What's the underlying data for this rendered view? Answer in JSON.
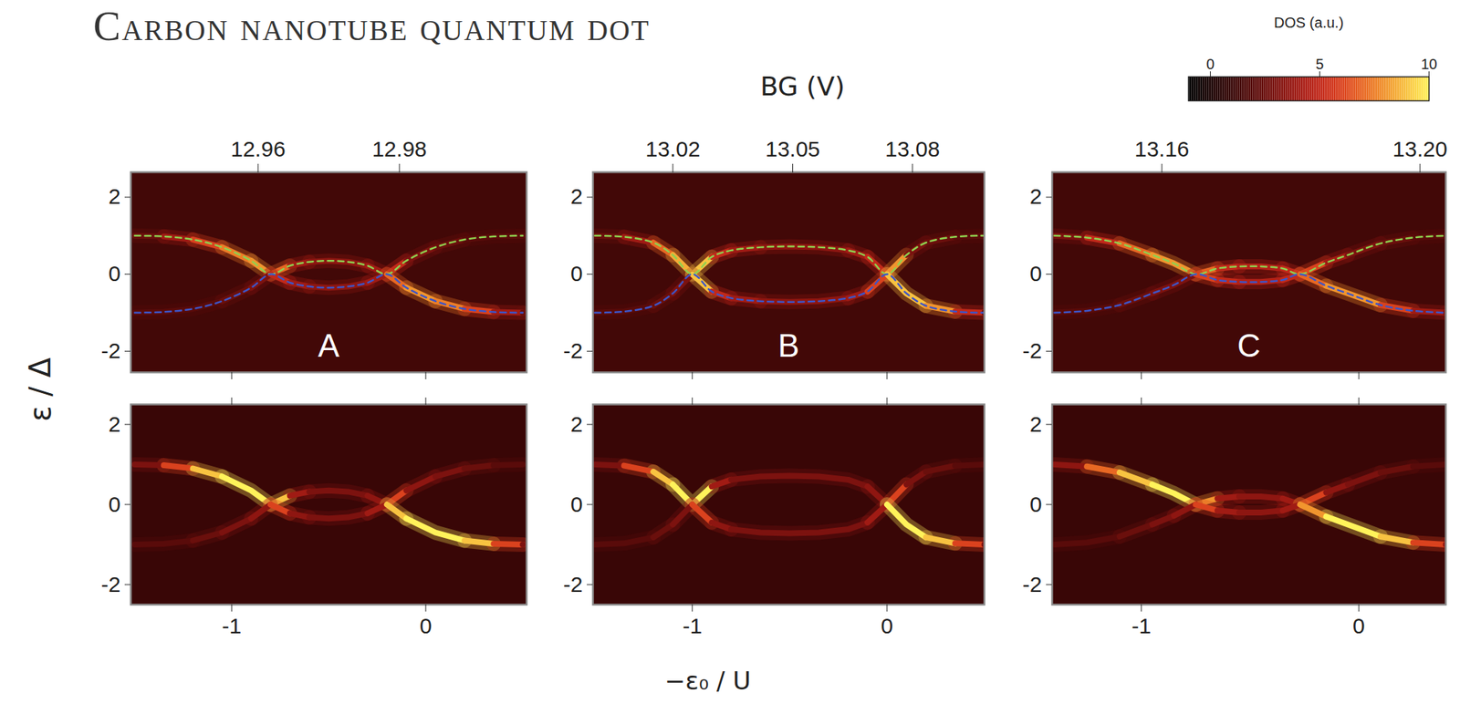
{
  "figure": {
    "title": "Carbon nanotube quantum dot",
    "x2_label": "BG (V)",
    "x_label": "−ε₀ / U",
    "y_label": "ε / Δ",
    "colorbar": {
      "label": "DOS (a.u.)",
      "range": [
        -1,
        10
      ],
      "ticks": [
        0,
        5,
        10
      ]
    }
  },
  "chart_data": [
    {
      "type": "line",
      "label": "A",
      "tick_labels": "y",
      "background_dos": 1.3,
      "xlim": [
        -1.52,
        0.52
      ],
      "xticks": [
        -1,
        0
      ],
      "ylim": [
        -2.55,
        2.65
      ],
      "yticks": [
        -2,
        0,
        2
      ],
      "x2lim": [
        12.942,
        12.998
      ],
      "x2ticks": [
        12.96,
        12.98
      ],
      "x": [
        -1.5,
        -1.35,
        -1.2,
        -1.05,
        -0.9,
        -0.8,
        -0.7,
        -0.6,
        -0.5,
        -0.4,
        -0.3,
        -0.2,
        -0.1,
        0.05,
        0.2,
        0.35,
        0.5
      ],
      "series": [
        {
          "values": [
            1.0,
            0.98,
            0.9,
            0.7,
            0.35,
            0,
            0.22,
            0.32,
            0.35,
            0.32,
            0.22,
            0,
            0.35,
            0.7,
            0.9,
            0.98,
            1.0
          ],
          "dos": [
            2.5,
            4,
            6,
            7.5,
            8,
            7,
            4,
            3.5,
            3.5,
            3.5,
            4,
            5,
            3,
            2.5,
            2,
            2,
            2
          ]
        },
        {
          "values": [
            -1.0,
            -0.98,
            -0.9,
            -0.7,
            -0.35,
            0,
            -0.22,
            -0.32,
            -0.35,
            -0.32,
            -0.22,
            0,
            -0.35,
            -0.7,
            -0.9,
            -0.98,
            -1.0
          ],
          "dos": [
            2,
            2,
            2,
            2.5,
            3,
            5,
            4,
            3.5,
            3.5,
            3.5,
            4,
            7,
            8,
            7.5,
            6,
            4,
            2.5
          ]
        },
        {
          "values": [
            1.0,
            0.98,
            0.9,
            0.7,
            0.35,
            0,
            0.22,
            0.32,
            0.35,
            0.32,
            0.22,
            0,
            0.35,
            0.7,
            0.9,
            0.98,
            1.0
          ],
          "color": "#8fd14f",
          "line_style": "dashed"
        },
        {
          "values": [
            -1.0,
            -0.98,
            -0.9,
            -0.7,
            -0.35,
            0,
            -0.22,
            -0.32,
            -0.35,
            -0.32,
            -0.22,
            0,
            -0.35,
            -0.7,
            -0.9,
            -0.98,
            -1.0
          ],
          "color": "#3d55c8",
          "line_style": "dashed"
        }
      ]
    },
    {
      "type": "line",
      "label": "B",
      "tick_labels": "y",
      "background_dos": 1.3,
      "xlim": [
        -1.51,
        0.5
      ],
      "xticks": [
        -1,
        0
      ],
      "ylim": [
        -2.55,
        2.65
      ],
      "yticks": [
        -2,
        0,
        2
      ],
      "x2lim": [
        13.0,
        13.098
      ],
      "x2ticks": [
        13.02,
        13.05,
        13.08
      ],
      "x": [
        -1.5,
        -1.35,
        -1.2,
        -1.1,
        -1.0,
        -0.9,
        -0.8,
        -0.65,
        -0.5,
        -0.35,
        -0.2,
        -0.1,
        0.0,
        0.1,
        0.2,
        0.35,
        0.5
      ],
      "series": [
        {
          "values": [
            1.0,
            0.97,
            0.82,
            0.5,
            0,
            0.45,
            0.62,
            0.7,
            0.72,
            0.7,
            0.62,
            0.45,
            0,
            0.5,
            0.82,
            0.97,
            1.0
          ],
          "dos": [
            2.5,
            4,
            7,
            8.5,
            9,
            5,
            4,
            3.5,
            3.5,
            3.5,
            4,
            5,
            8,
            3,
            2.5,
            2,
            2
          ]
        },
        {
          "values": [
            -1.0,
            -0.97,
            -0.82,
            -0.5,
            0,
            -0.45,
            -0.62,
            -0.7,
            -0.72,
            -0.7,
            -0.62,
            -0.45,
            0,
            -0.5,
            -0.82,
            -0.97,
            -1.0
          ],
          "dos": [
            2,
            2,
            2.5,
            3,
            9,
            5,
            4,
            3.5,
            3.5,
            3.5,
            4,
            6,
            9,
            9,
            8,
            5,
            2.5
          ]
        },
        {
          "values": [
            1.0,
            0.97,
            0.82,
            0.5,
            0,
            0.45,
            0.62,
            0.7,
            0.72,
            0.7,
            0.62,
            0.45,
            0,
            0.5,
            0.82,
            0.97,
            1.0
          ],
          "color": "#8fd14f",
          "line_style": "dashed"
        },
        {
          "values": [
            -1.0,
            -0.97,
            -0.82,
            -0.5,
            0,
            -0.45,
            -0.62,
            -0.7,
            -0.72,
            -0.7,
            -0.62,
            -0.45,
            0,
            -0.5,
            -0.82,
            -0.97,
            -1.0
          ],
          "color": "#3d55c8",
          "line_style": "dashed"
        }
      ]
    },
    {
      "type": "line",
      "label": "C",
      "tick_labels": "y",
      "background_dos": 1.3,
      "xlim": [
        -1.41,
        0.4
      ],
      "xticks": [
        -1,
        0
      ],
      "ylim": [
        -2.55,
        2.65
      ],
      "yticks": [
        -2,
        0,
        2
      ],
      "x2lim": [
        13.143,
        13.204
      ],
      "x2ticks": [
        13.16,
        {
          "value": 13.2,
          "label": "13.20"
        }
      ],
      "x": [
        -1.4,
        -1.25,
        -1.1,
        -0.95,
        -0.85,
        -0.75,
        -0.65,
        -0.55,
        -0.45,
        -0.35,
        -0.27,
        -0.15,
        -0.05,
        0.1,
        0.25,
        0.4
      ],
      "series": [
        {
          "values": [
            1.0,
            0.95,
            0.8,
            0.5,
            0.28,
            0,
            0.15,
            0.2,
            0.2,
            0.15,
            0,
            0.3,
            0.5,
            0.8,
            0.95,
            1.0
          ],
          "dos": [
            3,
            5,
            7,
            8,
            8,
            7,
            5,
            4.5,
            4.5,
            5,
            6,
            4,
            3,
            2.5,
            2,
            2
          ]
        },
        {
          "values": [
            -1.0,
            -0.95,
            -0.8,
            -0.5,
            -0.28,
            0,
            -0.15,
            -0.2,
            -0.2,
            -0.15,
            0,
            -0.3,
            -0.5,
            -0.8,
            -0.95,
            -1.0
          ],
          "dos": [
            2,
            2,
            2.5,
            3,
            3,
            6,
            5,
            4.5,
            4.5,
            5,
            7,
            8,
            8,
            6,
            4,
            3
          ]
        },
        {
          "values": [
            1.0,
            0.95,
            0.8,
            0.5,
            0.28,
            0,
            0.15,
            0.2,
            0.2,
            0.15,
            0,
            0.3,
            0.5,
            0.8,
            0.95,
            1.0
          ],
          "color": "#8fd14f",
          "line_style": "dashed"
        },
        {
          "values": [
            -1.0,
            -0.95,
            -0.8,
            -0.5,
            -0.28,
            0,
            -0.15,
            -0.2,
            -0.2,
            -0.15,
            0,
            -0.3,
            -0.5,
            -0.8,
            -0.95,
            -1.0
          ],
          "color": "#3d55c8",
          "line_style": "dashed"
        }
      ]
    },
    {
      "type": "line",
      "tick_labels": true,
      "background_dos": 1.0,
      "xlim": [
        -1.52,
        0.52
      ],
      "xticks": [
        -1,
        0
      ],
      "ylim": [
        -2.5,
        2.5
      ],
      "yticks": [
        -2,
        0,
        2
      ],
      "x": [
        -1.5,
        -1.35,
        -1.2,
        -1.05,
        -0.9,
        -0.8,
        -0.7,
        -0.6,
        -0.5,
        -0.4,
        -0.3,
        -0.2,
        -0.1,
        0.05,
        0.2,
        0.35,
        0.5
      ],
      "series": [
        {
          "values": [
            1.0,
            0.98,
            0.9,
            0.7,
            0.35,
            0,
            0.22,
            0.32,
            0.35,
            0.32,
            0.22,
            0,
            0.35,
            0.7,
            0.9,
            0.98,
            1.0
          ],
          "dos": [
            3,
            6,
            9,
            10,
            10,
            9,
            4,
            3,
            3,
            3,
            3.5,
            6,
            3.5,
            3,
            2.5,
            2,
            2
          ]
        },
        {
          "values": [
            -1.0,
            -0.98,
            -0.9,
            -0.7,
            -0.35,
            0,
            -0.22,
            -0.32,
            -0.35,
            -0.32,
            -0.22,
            0,
            -0.35,
            -0.7,
            -0.9,
            -0.98,
            -1.0
          ],
          "dos": [
            2,
            2,
            2.5,
            3,
            3.5,
            6,
            3.5,
            3,
            3,
            3,
            4,
            9,
            10,
            10,
            9,
            6,
            3
          ]
        }
      ]
    },
    {
      "type": "line",
      "tick_labels": true,
      "background_dos": 1.0,
      "xlim": [
        -1.51,
        0.5
      ],
      "xticks": [
        -1,
        0
      ],
      "ylim": [
        -2.5,
        2.5
      ],
      "yticks": [
        -2,
        0,
        2
      ],
      "x": [
        -1.5,
        -1.35,
        -1.2,
        -1.1,
        -1.0,
        -0.9,
        -0.8,
        -0.65,
        -0.5,
        -0.35,
        -0.2,
        -0.1,
        0.0,
        0.1,
        0.2,
        0.35,
        0.5
      ],
      "series": [
        {
          "values": [
            1.0,
            0.97,
            0.82,
            0.5,
            0,
            0.45,
            0.62,
            0.7,
            0.72,
            0.7,
            0.62,
            0.45,
            0,
            0.5,
            0.82,
            0.97,
            1.0
          ],
          "dos": [
            3,
            6,
            9,
            10,
            10,
            4,
            3,
            3,
            3,
            3,
            3,
            3.5,
            6,
            3,
            2.5,
            2,
            2
          ]
        },
        {
          "values": [
            -1.0,
            -0.97,
            -0.82,
            -0.5,
            0,
            -0.45,
            -0.62,
            -0.7,
            -0.72,
            -0.7,
            -0.62,
            -0.45,
            0,
            -0.5,
            -0.82,
            -0.97,
            -1.0
          ],
          "dos": [
            2,
            2,
            2.5,
            3,
            6,
            3.5,
            3,
            3,
            3,
            3,
            3,
            4,
            10,
            10,
            9,
            6,
            3
          ]
        }
      ]
    },
    {
      "type": "line",
      "tick_labels": true,
      "background_dos": 1.0,
      "xlim": [
        -1.41,
        0.4
      ],
      "xticks": [
        -1,
        0
      ],
      "ylim": [
        -2.5,
        2.5
      ],
      "yticks": [
        -2,
        0,
        2
      ],
      "x": [
        -1.4,
        -1.25,
        -1.1,
        -0.95,
        -0.85,
        -0.75,
        -0.65,
        -0.55,
        -0.45,
        -0.35,
        -0.27,
        -0.15,
        -0.05,
        0.1,
        0.25,
        0.4
      ],
      "series": [
        {
          "values": [
            1.0,
            0.95,
            0.8,
            0.5,
            0.28,
            0,
            0.15,
            0.2,
            0.2,
            0.15,
            0,
            0.3,
            0.5,
            0.8,
            0.95,
            1.0
          ],
          "dos": [
            3.5,
            7,
            9,
            10,
            10,
            8,
            4,
            3.5,
            3.5,
            4,
            6,
            3.5,
            3,
            2.5,
            2,
            2
          ]
        },
        {
          "values": [
            -1.0,
            -0.95,
            -0.8,
            -0.5,
            -0.28,
            0,
            -0.15,
            -0.2,
            -0.2,
            -0.15,
            0,
            -0.3,
            -0.5,
            -0.8,
            -0.95,
            -1.0
          ],
          "dos": [
            2,
            2,
            2.5,
            3,
            3.5,
            6,
            4,
            3.5,
            3.5,
            4,
            8,
            10,
            10,
            9,
            6,
            3.5
          ]
        }
      ]
    }
  ]
}
